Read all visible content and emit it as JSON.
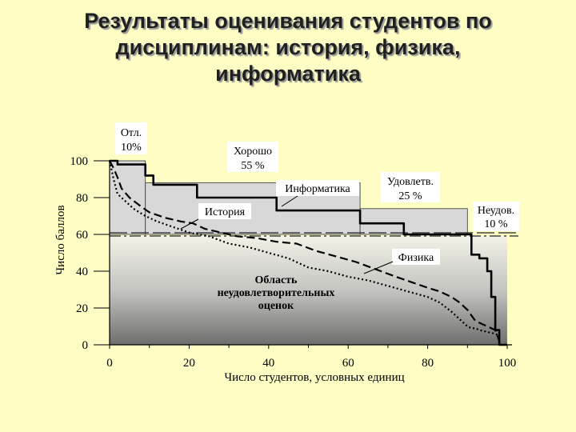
{
  "title_lines": [
    "Результаты оценивания студентов по",
    "дисциплинам: история, физика,",
    "информатика"
  ],
  "chart_data": {
    "type": "line",
    "xlabel": "Число студентов, условных единиц",
    "ylabel": "Число баллов",
    "xlim": [
      0,
      100
    ],
    "ylim": [
      0,
      100
    ],
    "x_ticks": [
      "0",
      "20",
      "40",
      "60",
      "80",
      "100"
    ],
    "y_ticks": [
      "0",
      "20",
      "40",
      "60",
      "80",
      "100"
    ],
    "grade_bands": [
      {
        "label": "Отл.",
        "percent": "10%",
        "x": [
          0,
          9
        ],
        "level": 100
      },
      {
        "label": "Хорошо",
        "percent": "55 %",
        "x": [
          9,
          63
        ],
        "level": 88
      },
      {
        "label": "Удовлетв.",
        "percent": "25 %",
        "x": [
          63,
          90
        ],
        "level": 74
      },
      {
        "label": "Неудов.",
        "percent": "10 %",
        "x": [
          90,
          100
        ],
        "level": 60
      }
    ],
    "threshold": 60,
    "area_label": [
      "Область",
      "неудовлетворительных",
      "оценок"
    ],
    "series": [
      {
        "name": "Информатика",
        "style": "solid",
        "x": [
          0,
          2,
          2,
          9,
          9,
          11,
          11,
          22,
          22,
          42,
          42,
          63,
          63,
          74,
          74,
          91,
          91,
          93,
          93,
          95,
          95,
          96,
          96,
          97,
          97,
          98,
          98,
          100
        ],
        "y": [
          100,
          100,
          98,
          98,
          92,
          92,
          87,
          87,
          80,
          80,
          73,
          73,
          66,
          66,
          60,
          60,
          49,
          49,
          47,
          47,
          40,
          40,
          26,
          26,
          8,
          8,
          0,
          0
        ]
      },
      {
        "name": "История",
        "style": "dashed",
        "x": [
          0,
          1,
          2,
          3,
          5,
          8,
          10,
          14,
          18,
          21,
          24,
          28,
          32,
          37,
          42,
          47,
          52,
          57,
          62,
          67,
          72,
          76,
          80,
          83,
          86,
          88,
          90,
          92,
          94,
          96,
          97,
          98
        ],
        "y": [
          100,
          96,
          91,
          85,
          80,
          75,
          72,
          69,
          67,
          66,
          63,
          61,
          59,
          58,
          56,
          55,
          51,
          48,
          45,
          41,
          37,
          34,
          31,
          29,
          26,
          23,
          19,
          13,
          11,
          9,
          8,
          2
        ]
      },
      {
        "name": "Физика",
        "style": "dotted",
        "x": [
          0,
          1,
          2,
          4,
          6,
          9,
          12,
          16,
          20,
          25,
          30,
          35,
          40,
          45,
          50,
          55,
          60,
          65,
          70,
          75,
          80,
          83,
          86,
          88,
          90,
          91,
          92,
          93,
          95,
          97,
          98
        ],
        "y": [
          100,
          90,
          82,
          78,
          74,
          70,
          67,
          64,
          61,
          59,
          55,
          53,
          50,
          47,
          42,
          40,
          37,
          35,
          32,
          29,
          26,
          23,
          18,
          14,
          10,
          9,
          9,
          8,
          7,
          6,
          5
        ]
      }
    ]
  }
}
